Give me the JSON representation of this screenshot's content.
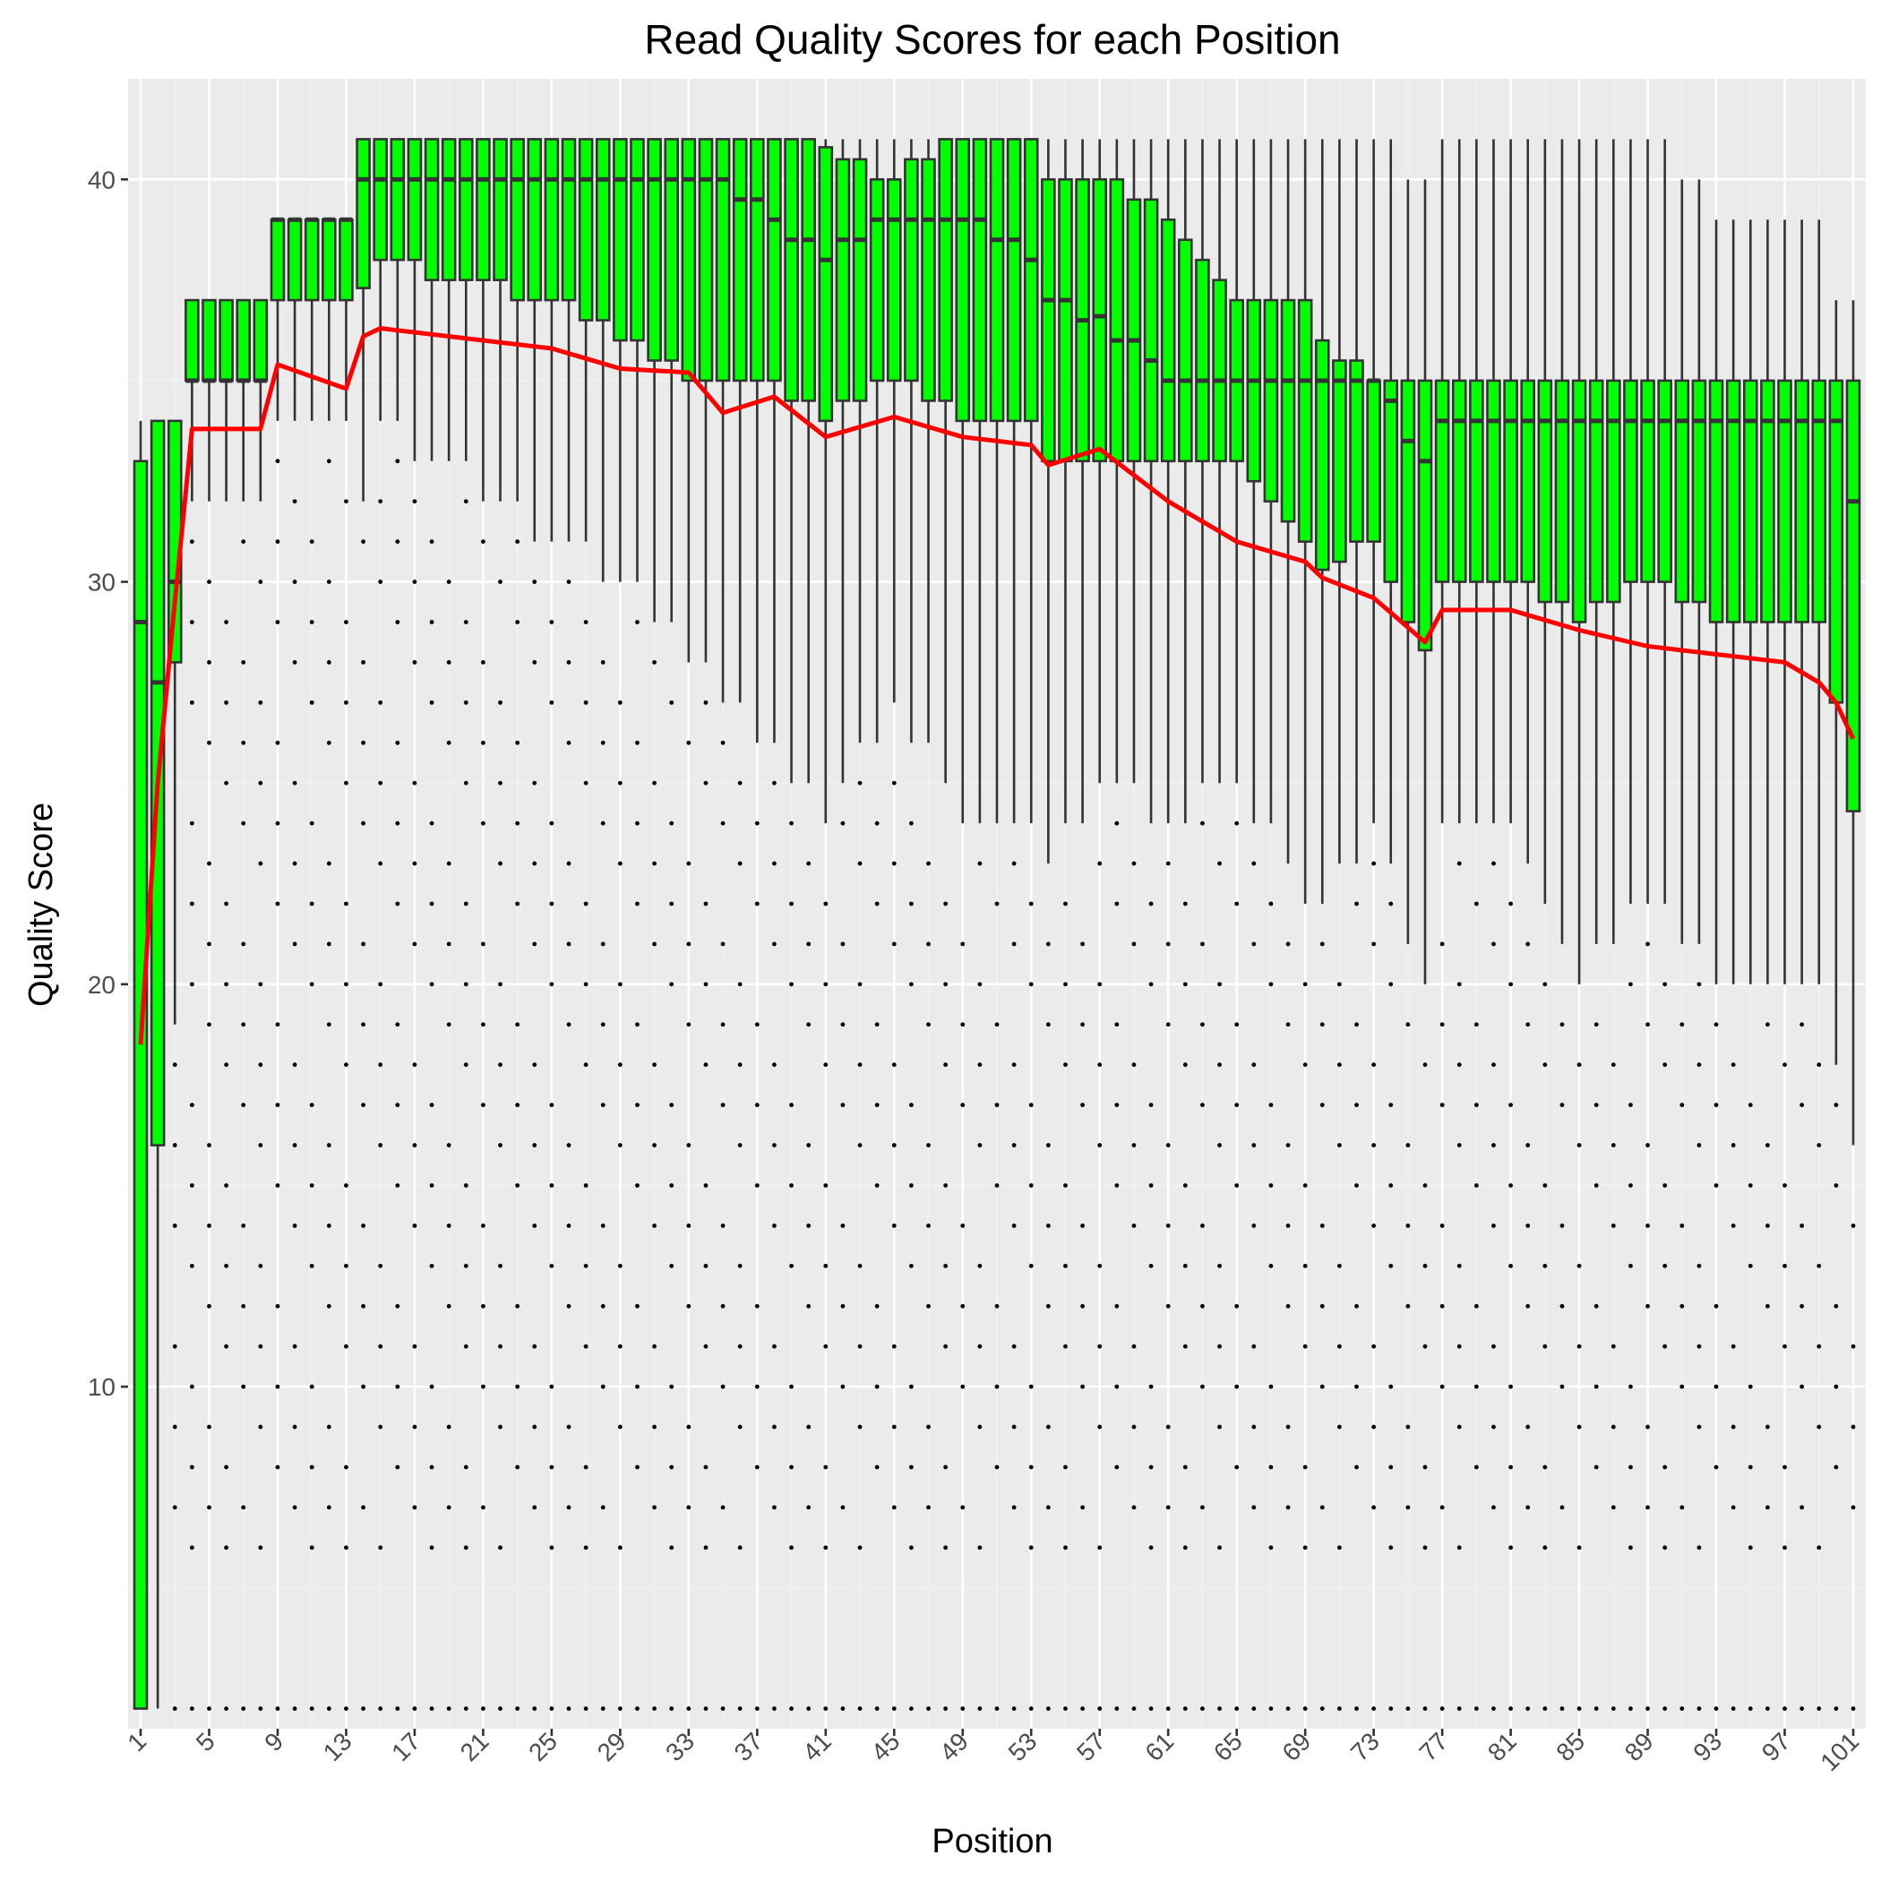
{
  "chart_data": {
    "type": "boxplot",
    "title": "Read Quality Scores for each Position",
    "xlabel": "Position",
    "ylabel": "Quality Score",
    "x_range": [
      1,
      101
    ],
    "ylim": [
      1.5,
      42.5
    ],
    "y_ticks": [
      10,
      20,
      30,
      40
    ],
    "x_ticks": [
      1,
      5,
      9,
      13,
      17,
      21,
      25,
      29,
      33,
      37,
      41,
      45,
      49,
      53,
      57,
      61,
      65,
      69,
      73,
      77,
      81,
      85,
      89,
      93,
      97,
      101
    ],
    "grid": true,
    "colors": {
      "box_fill": "#00ff00",
      "box_outline": "#333333",
      "mean_line": "#ff0000",
      "panel": "#ebebeb"
    },
    "anchors": [
      {
        "pos": 1,
        "q1": 2,
        "median": 29,
        "q3": 33,
        "lo": 2,
        "hi": 34,
        "mean": 18.5
      },
      {
        "pos": 2,
        "q1": 16,
        "median": 27.5,
        "q3": 34,
        "lo": 2,
        "hi": 34,
        "mean": 25
      },
      {
        "pos": 3,
        "q1": 28,
        "median": 30,
        "q3": 34,
        "lo": 19,
        "hi": 34,
        "mean": 29.5
      },
      {
        "pos": 4,
        "q1": 35,
        "median": 35,
        "q3": 37,
        "lo": 32,
        "hi": 37,
        "mean": 33.8
      },
      {
        "pos": 8,
        "q1": 35,
        "median": 35,
        "q3": 37,
        "lo": 32,
        "hi": 37,
        "mean": 33.8
      },
      {
        "pos": 9,
        "q1": 37,
        "median": 39,
        "q3": 39,
        "lo": 34,
        "hi": 39,
        "mean": 35.4
      },
      {
        "pos": 13,
        "q1": 37,
        "median": 39,
        "q3": 39,
        "lo": 34,
        "hi": 39,
        "mean": 34.8
      },
      {
        "pos": 14,
        "q1": 37.3,
        "median": 40,
        "q3": 41,
        "lo": 32,
        "hi": 41,
        "mean": 36.1
      },
      {
        "pos": 15,
        "q1": 38,
        "median": 40,
        "q3": 41,
        "lo": 34,
        "hi": 41,
        "mean": 36.3
      },
      {
        "pos": 25,
        "q1": 37,
        "median": 40,
        "q3": 41,
        "lo": 31,
        "hi": 41,
        "mean": 35.8
      },
      {
        "pos": 29,
        "q1": 36,
        "median": 40,
        "q3": 41,
        "lo": 30,
        "hi": 41,
        "mean": 35.3
      },
      {
        "pos": 33,
        "q1": 35,
        "median": 40,
        "q3": 41,
        "lo": 28,
        "hi": 41,
        "mean": 35.2
      },
      {
        "pos": 35,
        "q1": 35,
        "median": 40,
        "q3": 41,
        "lo": 27,
        "hi": 41,
        "mean": 34.2
      },
      {
        "pos": 38,
        "q1": 35,
        "median": 39,
        "q3": 41,
        "lo": 26,
        "hi": 41,
        "mean": 34.6
      },
      {
        "pos": 41,
        "q1": 34,
        "median": 38,
        "q3": 40.8,
        "lo": 24,
        "hi": 41,
        "mean": 33.6
      },
      {
        "pos": 45,
        "q1": 35,
        "median": 39,
        "q3": 40,
        "lo": 27,
        "hi": 41,
        "mean": 34.1
      },
      {
        "pos": 49,
        "q1": 34,
        "median": 39,
        "q3": 41,
        "lo": 24,
        "hi": 41,
        "mean": 33.6
      },
      {
        "pos": 53,
        "q1": 34,
        "median": 38,
        "q3": 41,
        "lo": 24,
        "hi": 41,
        "mean": 33.4
      },
      {
        "pos": 54,
        "q1": 33,
        "median": 37,
        "q3": 40,
        "lo": 23,
        "hi": 41,
        "mean": 32.9
      },
      {
        "pos": 57,
        "q1": 33,
        "median": 36.6,
        "q3": 40,
        "lo": 25,
        "hi": 41,
        "mean": 33.3
      },
      {
        "pos": 61,
        "q1": 33,
        "median": 35,
        "q3": 39,
        "lo": 24,
        "hi": 41,
        "mean": 32
      },
      {
        "pos": 65,
        "q1": 33,
        "median": 35,
        "q3": 37,
        "lo": 25,
        "hi": 41,
        "mean": 31
      },
      {
        "pos": 69,
        "q1": 31,
        "median": 35,
        "q3": 37,
        "lo": 22,
        "hi": 41,
        "mean": 30.5
      },
      {
        "pos": 70,
        "q1": 30.3,
        "median": 35,
        "q3": 36,
        "lo": 22,
        "hi": 41,
        "mean": 30.1
      },
      {
        "pos": 73,
        "q1": 31,
        "median": 35,
        "q3": 35,
        "lo": 24,
        "hi": 41,
        "mean": 29.6
      },
      {
        "pos": 76,
        "q1": 28.3,
        "median": 33,
        "q3": 35,
        "lo": 20,
        "hi": 40,
        "mean": 28.5
      },
      {
        "pos": 77,
        "q1": 30,
        "median": 34,
        "q3": 35,
        "lo": 24,
        "hi": 41,
        "mean": 29.3
      },
      {
        "pos": 81,
        "q1": 30,
        "median": 34,
        "q3": 35,
        "lo": 24,
        "hi": 41,
        "mean": 29.3
      },
      {
        "pos": 85,
        "q1": 29,
        "median": 34,
        "q3": 35,
        "lo": 20,
        "hi": 41,
        "mean": 28.8
      },
      {
        "pos": 89,
        "q1": 30,
        "median": 34,
        "q3": 35,
        "lo": 22,
        "hi": 41,
        "mean": 28.4
      },
      {
        "pos": 93,
        "q1": 29,
        "median": 34,
        "q3": 35,
        "lo": 20,
        "hi": 39,
        "mean": 28.2
      },
      {
        "pos": 97,
        "q1": 29,
        "median": 34,
        "q3": 35,
        "lo": 20,
        "hi": 39,
        "mean": 28
      },
      {
        "pos": 99,
        "q1": 29,
        "median": 34,
        "q3": 35,
        "lo": 20,
        "hi": 39,
        "mean": 27.5
      },
      {
        "pos": 100,
        "q1": 27,
        "median": 34,
        "q3": 35,
        "lo": 18,
        "hi": 37,
        "mean": 27
      },
      {
        "pos": 101,
        "q1": 24.3,
        "median": 32,
        "q3": 35,
        "lo": 16,
        "hi": 37,
        "mean": 26.1
      }
    ],
    "outlier_floor": 2
  }
}
